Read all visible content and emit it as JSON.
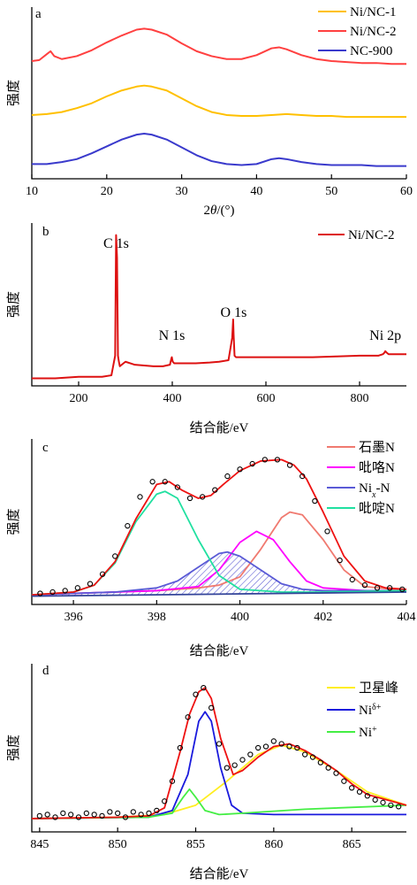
{
  "chart_data": [
    {
      "panel": "a",
      "type": "line",
      "xlabel": "2θ/(°)",
      "ylabel": "强度",
      "xlim": [
        10,
        60
      ],
      "xticks": [
        10,
        20,
        30,
        40,
        50,
        60
      ],
      "legend": [
        "Ni/NC-1",
        "Ni/NC-2",
        "NC-900"
      ],
      "legend_position": "top-right",
      "series": [
        {
          "name": "Ni/NC-1",
          "color": "#ffc000",
          "x": [
            10,
            12,
            14,
            16,
            18,
            20,
            22,
            24,
            25,
            26,
            28,
            30,
            32,
            34,
            36,
            38,
            40,
            42,
            44,
            46,
            48,
            50,
            52,
            54,
            56,
            58,
            60
          ],
          "y": [
            0.8,
            0.81,
            0.83,
            0.87,
            0.92,
            0.99,
            1.05,
            1.09,
            1.1,
            1.09,
            1.05,
            0.97,
            0.89,
            0.83,
            0.8,
            0.79,
            0.79,
            0.8,
            0.81,
            0.8,
            0.79,
            0.79,
            0.78,
            0.78,
            0.78,
            0.78,
            0.78
          ]
        },
        {
          "name": "Ni/NC-2",
          "color": "#ff4040",
          "x": [
            10,
            11,
            12,
            12.5,
            13,
            14,
            16,
            18,
            20,
            22,
            24,
            25,
            26,
            28,
            30,
            32,
            34,
            36,
            38,
            40,
            42,
            43,
            44,
            46,
            48,
            50,
            52,
            54,
            56,
            58,
            60
          ],
          "y": [
            1.35,
            1.36,
            1.42,
            1.45,
            1.4,
            1.37,
            1.4,
            1.46,
            1.54,
            1.61,
            1.67,
            1.68,
            1.67,
            1.62,
            1.53,
            1.45,
            1.4,
            1.37,
            1.37,
            1.41,
            1.48,
            1.49,
            1.47,
            1.41,
            1.37,
            1.35,
            1.34,
            1.33,
            1.33,
            1.32,
            1.32
          ]
        },
        {
          "name": "NC-900",
          "color": "#3a3acc",
          "x": [
            10,
            12,
            14,
            16,
            18,
            20,
            22,
            24,
            25,
            26,
            28,
            30,
            32,
            34,
            36,
            38,
            40,
            42,
            43,
            44,
            46,
            48,
            50,
            52,
            54,
            56,
            58,
            60
          ],
          "y": [
            0.3,
            0.3,
            0.32,
            0.35,
            0.41,
            0.48,
            0.55,
            0.6,
            0.61,
            0.6,
            0.55,
            0.47,
            0.39,
            0.33,
            0.3,
            0.29,
            0.3,
            0.35,
            0.36,
            0.35,
            0.32,
            0.3,
            0.29,
            0.29,
            0.29,
            0.28,
            0.28,
            0.28
          ]
        }
      ]
    },
    {
      "panel": "b",
      "type": "line",
      "xlabel": "结合能/eV",
      "ylabel": "强度",
      "xlim": [
        100,
        900
      ],
      "xticks": [
        200,
        400,
        600,
        800
      ],
      "legend": [
        "Ni/NC-2"
      ],
      "legend_position": "top-right",
      "annotations": [
        {
          "text": "C 1s",
          "x": 280
        },
        {
          "text": "N 1s",
          "x": 399
        },
        {
          "text": "O 1s",
          "x": 531
        },
        {
          "text": "Ni 2p",
          "x": 855
        }
      ],
      "series": [
        {
          "name": "Ni/NC-2",
          "color": "#dd1111",
          "x": [
            100,
            150,
            200,
            250,
            270,
            278,
            280,
            282,
            284,
            286,
            288,
            292,
            300,
            310,
            320,
            340,
            360,
            380,
            395,
            398,
            399,
            401,
            404,
            420,
            450,
            480,
            500,
            520,
            528,
            530,
            531,
            533,
            536,
            545,
            560,
            600,
            650,
            700,
            750,
            800,
            840,
            850,
            853,
            855,
            858,
            862,
            870,
            880,
            890,
            900
          ],
          "y": [
            0.05,
            0.05,
            0.06,
            0.06,
            0.07,
            0.2,
            1.0,
            0.85,
            0.2,
            0.16,
            0.13,
            0.14,
            0.16,
            0.15,
            0.14,
            0.135,
            0.13,
            0.13,
            0.14,
            0.18,
            0.19,
            0.16,
            0.15,
            0.15,
            0.15,
            0.155,
            0.16,
            0.17,
            0.32,
            0.44,
            0.34,
            0.2,
            0.19,
            0.19,
            0.19,
            0.19,
            0.19,
            0.19,
            0.195,
            0.2,
            0.2,
            0.21,
            0.22,
            0.23,
            0.22,
            0.21,
            0.21,
            0.21,
            0.21,
            0.21
          ]
        }
      ]
    },
    {
      "panel": "c",
      "type": "line",
      "xlabel": "结合能/eV",
      "ylabel": "强度",
      "xlim": [
        395,
        404
      ],
      "xticks": [
        396,
        398,
        400,
        402,
        404
      ],
      "legend": [
        "石墨N",
        "吡咯N",
        "Ni<sub>x</sub>-N",
        "吡啶N"
      ],
      "legend_position": "top-right",
      "series": [
        {
          "name": "石墨N",
          "color": "#f07a70",
          "x": [
            395,
            396,
            397,
            398,
            399,
            399.5,
            400,
            400.5,
            401,
            401.2,
            401.5,
            402,
            402.5,
            403,
            404
          ],
          "y": [
            0.02,
            0.03,
            0.04,
            0.05,
            0.07,
            0.09,
            0.15,
            0.35,
            0.58,
            0.62,
            0.6,
            0.42,
            0.2,
            0.08,
            0.05
          ]
        },
        {
          "name": "吡咯N",
          "color": "#ff00ff",
          "x": [
            395,
            396,
            397,
            398,
            399,
            399.5,
            400,
            400.4,
            400.8,
            401.2,
            401.6,
            402,
            403,
            404
          ],
          "y": [
            0.02,
            0.03,
            0.04,
            0.05,
            0.08,
            0.2,
            0.4,
            0.48,
            0.42,
            0.26,
            0.12,
            0.07,
            0.05,
            0.05
          ]
        },
        {
          "name": "Ni<sub>x</sub>-N",
          "color": "#5a5ad6",
          "x": [
            395,
            396,
            397,
            398,
            398.5,
            399,
            399.5,
            399.7,
            400,
            400.5,
            401,
            401.5,
            402,
            403,
            404
          ],
          "y": [
            0.02,
            0.03,
            0.04,
            0.07,
            0.12,
            0.22,
            0.32,
            0.33,
            0.3,
            0.2,
            0.1,
            0.06,
            0.05,
            0.05,
            0.05
          ]
        },
        {
          "name": "吡啶N",
          "color": "#20e0a0",
          "x": [
            395,
            396,
            396.5,
            397,
            397.5,
            398,
            398.2,
            398.5,
            399,
            399.5,
            400,
            401,
            402,
            404
          ],
          "y": [
            0.02,
            0.04,
            0.09,
            0.25,
            0.55,
            0.75,
            0.77,
            0.72,
            0.42,
            0.16,
            0.06,
            0.04,
            0.04,
            0.05
          ]
        },
        {
          "name": "fit",
          "color": "#ee1111",
          "x": [
            395,
            396,
            396.5,
            397,
            397.5,
            398,
            398.3,
            398.6,
            399,
            399.3,
            399.6,
            400,
            400.5,
            401,
            401.3,
            401.6,
            402,
            402.5,
            403,
            403.5,
            404
          ],
          "y": [
            0.02,
            0.04,
            0.09,
            0.26,
            0.57,
            0.82,
            0.84,
            0.78,
            0.72,
            0.74,
            0.82,
            0.92,
            0.99,
            1.0,
            0.96,
            0.86,
            0.62,
            0.3,
            0.12,
            0.07,
            0.06
          ]
        },
        {
          "name": "baseline",
          "color": "#334499",
          "x": [
            395,
            404
          ],
          "y": [
            0.01,
            0.04
          ]
        }
      ],
      "points": {
        "x": [
          395.2,
          395.5,
          395.8,
          396.1,
          396.4,
          396.7,
          397.0,
          397.3,
          397.6,
          397.9,
          398.2,
          398.5,
          398.8,
          399.1,
          399.4,
          399.7,
          400.0,
          400.3,
          400.6,
          400.9,
          401.2,
          401.5,
          401.8,
          402.1,
          402.4,
          402.7,
          403.0,
          403.3,
          403.6,
          403.9
        ],
        "y": [
          0.03,
          0.04,
          0.05,
          0.07,
          0.1,
          0.17,
          0.3,
          0.52,
          0.73,
          0.84,
          0.84,
          0.8,
          0.72,
          0.73,
          0.78,
          0.88,
          0.93,
          0.97,
          1.0,
          1.0,
          0.96,
          0.88,
          0.7,
          0.48,
          0.27,
          0.13,
          0.09,
          0.07,
          0.07,
          0.06
        ]
      }
    },
    {
      "panel": "d",
      "type": "line",
      "xlabel": "结合能/eV",
      "ylabel": "强度",
      "xlim": [
        844.5,
        868.5
      ],
      "xticks": [
        845,
        850,
        855,
        860,
        865
      ],
      "legend": [
        "卫星峰",
        "Ni<sup>δ+</sup>",
        "Ni<sup>+</sup>"
      ],
      "legend_position": "top-right",
      "series": [
        {
          "name": "卫星峰",
          "color": "#ffee22",
          "x": [
            844.5,
            850,
            853,
            855,
            857,
            859,
            860.5,
            862,
            864,
            866,
            868.5
          ],
          "y": [
            0.02,
            0.03,
            0.05,
            0.12,
            0.3,
            0.5,
            0.57,
            0.52,
            0.38,
            0.22,
            0.12
          ]
        },
        {
          "name": "Ni<sup>δ+</sup>",
          "color": "#1a1add",
          "x": [
            844.5,
            852,
            853.5,
            854.5,
            855.2,
            855.6,
            856,
            856.6,
            857.3,
            858,
            860,
            868.5
          ],
          "y": [
            0.02,
            0.03,
            0.08,
            0.35,
            0.75,
            0.82,
            0.75,
            0.4,
            0.12,
            0.06,
            0.05,
            0.05
          ]
        },
        {
          "name": "Ni<sup>+</sup>",
          "color": "#44ee44",
          "x": [
            844.5,
            852,
            853.5,
            854.2,
            854.6,
            855.0,
            855.6,
            856.5,
            858,
            862,
            868.5
          ],
          "y": [
            0.02,
            0.03,
            0.06,
            0.18,
            0.24,
            0.18,
            0.08,
            0.05,
            0.06,
            0.09,
            0.12
          ]
        },
        {
          "name": "fit",
          "color": "#ee1111",
          "x": [
            844.5,
            850,
            852,
            853,
            854,
            854.6,
            855.2,
            855.6,
            856,
            856.6,
            857.4,
            858,
            859,
            860,
            861,
            862,
            863,
            864,
            865,
            866,
            868.5
          ],
          "y": [
            0.02,
            0.03,
            0.04,
            0.1,
            0.52,
            0.8,
            0.97,
            1.0,
            0.92,
            0.62,
            0.35,
            0.38,
            0.48,
            0.56,
            0.58,
            0.53,
            0.46,
            0.38,
            0.28,
            0.2,
            0.12
          ]
        }
      ],
      "points": {
        "x": [
          845,
          845.5,
          846,
          846.5,
          847,
          847.5,
          848,
          848.5,
          849,
          849.5,
          850,
          850.5,
          851,
          851.5,
          852,
          852.5,
          853,
          853.5,
          854,
          854.5,
          855,
          855.5,
          856,
          856.5,
          857,
          857.5,
          858,
          858.5,
          859,
          859.5,
          860,
          860.5,
          861,
          861.5,
          862,
          862.5,
          863,
          863.5,
          864,
          864.5,
          865,
          865.5,
          866,
          866.5,
          867,
          867.5,
          868
        ],
        "y": [
          0.04,
          0.05,
          0.03,
          0.06,
          0.05,
          0.03,
          0.06,
          0.05,
          0.04,
          0.07,
          0.06,
          0.03,
          0.07,
          0.05,
          0.06,
          0.08,
          0.15,
          0.3,
          0.55,
          0.78,
          0.95,
          1.0,
          0.85,
          0.58,
          0.4,
          0.42,
          0.46,
          0.5,
          0.55,
          0.56,
          0.6,
          0.58,
          0.56,
          0.55,
          0.5,
          0.48,
          0.44,
          0.4,
          0.36,
          0.3,
          0.25,
          0.22,
          0.19,
          0.16,
          0.14,
          0.12,
          0.11
        ]
      }
    }
  ]
}
